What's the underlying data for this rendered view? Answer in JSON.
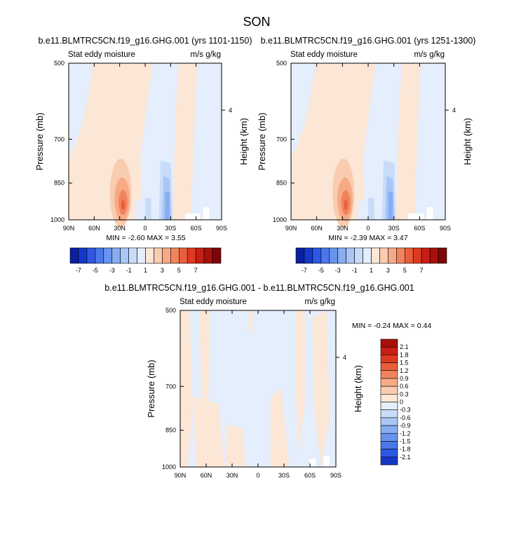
{
  "figure_title": "SON",
  "colors": {
    "neg": [
      "#e4eefc",
      "#c8dcfa",
      "#a9c6f6",
      "#87aef1",
      "#6893ee",
      "#4a77ea",
      "#2d58e4",
      "#1538c8",
      "#0a1fa0",
      "#0a0a78"
    ],
    "pos": [
      "#fce6d6",
      "#f9ccb0",
      "#f6ab86",
      "#f2845d",
      "#ea5e3c",
      "#de3a22",
      "#c81e14",
      "#a8100c",
      "#7c0606"
    ]
  },
  "chart_data": [
    {
      "type": "heatmap",
      "title": "b.e11.BLMTRC5CN.f19_g16.GHG.001 (yrs 1101-1150)",
      "left_label": "Stat eddy moisture",
      "right_label": "m/s g/kg",
      "xlabel": "",
      "ylabel": "Pressure (mb)",
      "y2label": "Height (km)",
      "x_ticks": [
        "90N",
        "60N",
        "30N",
        "0",
        "30S",
        "60S",
        "90S"
      ],
      "y_ticks": [
        "500",
        "700",
        "850",
        "1000"
      ],
      "y2_ticks": [
        "4"
      ],
      "min_max_text": "MIN =  -2.60   MAX =   3.55",
      "colorbar": {
        "orientation": "horizontal",
        "labels": [
          "-7",
          "-5",
          "-3",
          "-1",
          "1",
          "3",
          "5",
          "7"
        ]
      }
    },
    {
      "type": "heatmap",
      "title": "b.e11.BLMTRC5CN.f19_g16.GHG.001 (yrs 1251-1300)",
      "left_label": "Stat eddy moisture",
      "right_label": "m/s g/kg",
      "xlabel": "",
      "ylabel": "Pressure (mb)",
      "y2label": "Height (km)",
      "x_ticks": [
        "90N",
        "60N",
        "30N",
        "0",
        "30S",
        "60S",
        "90S"
      ],
      "y_ticks": [
        "500",
        "700",
        "850",
        "1000"
      ],
      "y2_ticks": [
        "4"
      ],
      "min_max_text": "MIN =  -2.39   MAX =   3.47",
      "colorbar": {
        "orientation": "horizontal",
        "labels": [
          "-7",
          "-5",
          "-3",
          "-1",
          "1",
          "3",
          "5",
          "7"
        ]
      }
    },
    {
      "type": "heatmap",
      "title": "b.e11.BLMTRC5CN.f19_g16.GHG.001 - b.e11.BLMTRC5CN.f19_g16.GHG.001",
      "left_label": "Stat eddy moisture",
      "right_label": "m/s g/kg",
      "xlabel": "",
      "ylabel": "Pressure (mb)",
      "y2label": "Height (km)",
      "x_ticks": [
        "90N",
        "60N",
        "30N",
        "0",
        "30S",
        "60S",
        "90S"
      ],
      "y_ticks": [
        "500",
        "700",
        "850",
        "1000"
      ],
      "y2_ticks": [
        "4"
      ],
      "min_max_text": "MIN =  -0.24   MAX =   0.44",
      "colorbar": {
        "orientation": "vertical",
        "labels": [
          "2.1",
          "1.8",
          "1.5",
          "1.2",
          "0.9",
          "0.6",
          "0.3",
          "0",
          "-0.3",
          "-0.6",
          "-0.9",
          "-1.2",
          "-1.5",
          "-1.8",
          "-2.1"
        ]
      }
    }
  ]
}
